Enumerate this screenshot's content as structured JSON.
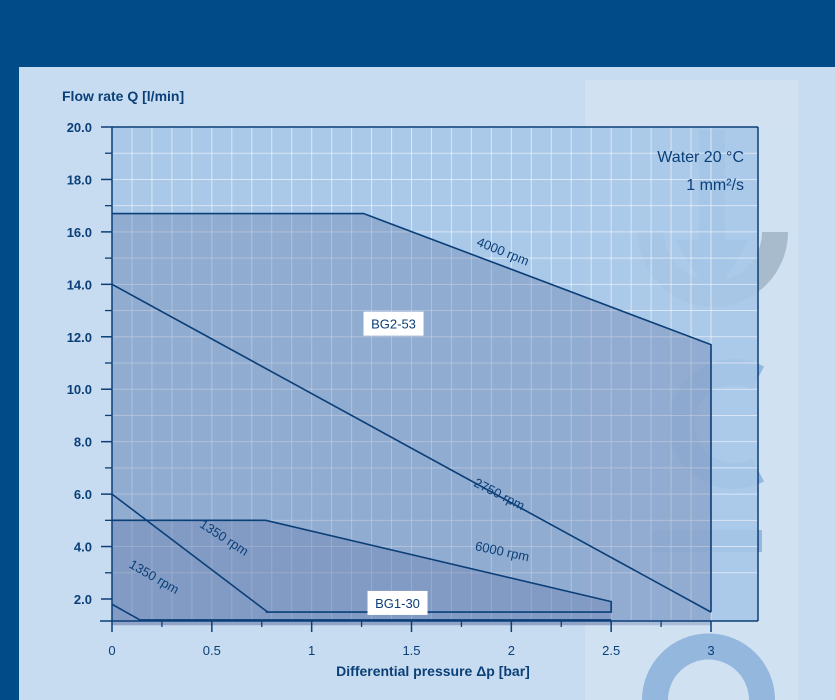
{
  "chart_data": {
    "type": "area",
    "ylabel": "Flow rate Q [l/min]",
    "xlabel": "Differential pressure Δp [bar]",
    "xlim": [
      0,
      3
    ],
    "ylim": [
      1.0,
      20.0
    ],
    "x_ticks": [
      {
        "value": 0,
        "label": "0"
      },
      {
        "value": 0.5,
        "label": "0.5"
      },
      {
        "value": 1,
        "label": "1"
      },
      {
        "value": 1.5,
        "label": "1.5"
      },
      {
        "value": 2,
        "label": "2"
      },
      {
        "value": 2.5,
        "label": "2.5"
      },
      {
        "value": 3,
        "label": "3"
      }
    ],
    "y_ticks": [
      {
        "value": 2.0,
        "label": "2.0"
      },
      {
        "value": 4.0,
        "label": "4.0"
      },
      {
        "value": 6.0,
        "label": "6.0"
      },
      {
        "value": 8.0,
        "label": "8.0"
      },
      {
        "value": 10.0,
        "label": "10.0"
      },
      {
        "value": 12.0,
        "label": "12.0"
      },
      {
        "value": 14.0,
        "label": "14.0"
      },
      {
        "value": 16.0,
        "label": "16.0"
      },
      {
        "value": 18.0,
        "label": "18.0"
      },
      {
        "value": 20.0,
        "label": "20.0"
      }
    ],
    "grid": true,
    "annotation": {
      "line1": "Water 20 °C",
      "line2": "1 mm²/s"
    },
    "regions": [
      {
        "label": "BG2-53",
        "x": [
          0,
          1.26,
          3,
          3,
          0
        ],
        "y": [
          16.7,
          16.7,
          11.7,
          1.0,
          1.0
        ],
        "label_at": [
          1.41,
          12.5
        ]
      },
      {
        "label": "BG1-30",
        "x": [
          0,
          0.77,
          2.5,
          2.5,
          0
        ],
        "y": [
          5.0,
          5.0,
          1.9,
          1.0,
          1.0
        ],
        "label_at": [
          1.43,
          1.85
        ]
      }
    ],
    "series": [
      {
        "name": "4000 rpm",
        "x": [
          0,
          1.26,
          3,
          3
        ],
        "y": [
          16.7,
          16.7,
          11.7,
          1.5
        ],
        "label_at": [
          1.95,
          15.1
        ],
        "label_angle": 22
      },
      {
        "name": "2750 rpm",
        "x": [
          0,
          3
        ],
        "y": [
          14.0,
          1.5
        ],
        "label_at": [
          1.93,
          5.85
        ],
        "label_angle": 27
      },
      {
        "name": "6000 rpm",
        "x": [
          0,
          0.77,
          2.5,
          2.5,
          0.77
        ],
        "y": [
          5.0,
          5.0,
          1.9,
          1.5,
          1.5
        ],
        "label_at": [
          1.95,
          3.65
        ],
        "label_angle": 12
      },
      {
        "name": "1350 rpm",
        "x": [
          0,
          0.78
        ],
        "y": [
          6.0,
          1.5
        ],
        "label_at": [
          0.55,
          4.2
        ],
        "label_angle": 33
      },
      {
        "name": "1350 rpm",
        "x": [
          0,
          0.14,
          2.5
        ],
        "y": [
          1.8,
          1.2,
          1.2
        ],
        "label_at": [
          0.2,
          2.7
        ],
        "label_angle": 30
      }
    ]
  }
}
